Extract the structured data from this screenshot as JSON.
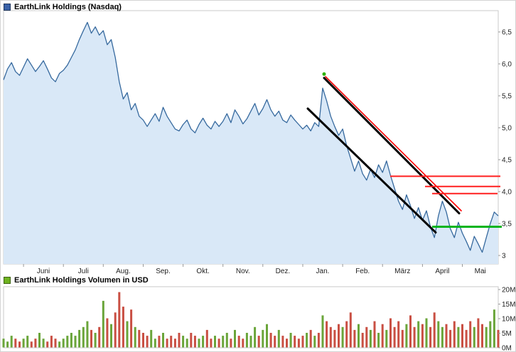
{
  "colors": {
    "price_legend_swatch": "#3a62a8",
    "volume_legend_swatch": "#6fb320",
    "price_line": "#36699e",
    "price_fill": "#d9e8f7",
    "frame": "#c8c8c8",
    "axis_text": "#222222",
    "tick": "#999999"
  },
  "price_chart": {
    "title": "EarthLink Holdings (Nasdaq)"
  },
  "volume_chart": {
    "title": "EarthLink Holdings Volumen in USD"
  },
  "chart_data": [
    {
      "type": "area",
      "title": "EarthLink Holdings (Nasdaq)",
      "ylabel": "",
      "xlabel": "",
      "ylim": [
        2.87,
        6.83
      ],
      "x_tick_labels": [
        "Juni",
        "Juli",
        "Aug.",
        "Sep.",
        "Okt.",
        "Nov.",
        "Dez.",
        "Jan.",
        "Feb.",
        "März",
        "April",
        "Mai"
      ],
      "x_tick_indices": [
        5,
        15,
        25,
        35,
        45,
        55,
        65,
        75,
        85,
        95,
        105,
        115
      ],
      "y_ticks": [
        {
          "label": "6,5",
          "value": 6.5
        },
        {
          "label": "6,0",
          "value": 6.0
        },
        {
          "label": "5,5",
          "value": 5.5
        },
        {
          "label": "5,0",
          "value": 5.0
        },
        {
          "label": "4,5",
          "value": 4.5
        },
        {
          "label": "4,0",
          "value": 4.0
        },
        {
          "label": "3,5",
          "value": 3.5
        },
        {
          "label": "3",
          "value": 3.0
        }
      ],
      "values": [
        5.75,
        5.92,
        6.02,
        5.88,
        5.82,
        5.95,
        6.08,
        5.98,
        5.88,
        5.96,
        6.05,
        5.92,
        5.78,
        5.72,
        5.85,
        5.9,
        5.98,
        6.1,
        6.22,
        6.38,
        6.52,
        6.65,
        6.48,
        6.58,
        6.45,
        6.52,
        6.3,
        6.38,
        6.1,
        5.72,
        5.45,
        5.55,
        5.28,
        5.38,
        5.18,
        5.12,
        5.02,
        5.12,
        5.22,
        5.1,
        5.32,
        5.18,
        5.08,
        4.98,
        4.95,
        5.05,
        5.12,
        4.98,
        4.92,
        5.05,
        5.15,
        5.04,
        4.98,
        5.1,
        5.02,
        5.1,
        5.22,
        5.08,
        5.28,
        5.18,
        5.06,
        5.14,
        5.26,
        5.38,
        5.2,
        5.3,
        5.44,
        5.28,
        5.18,
        5.26,
        5.12,
        5.08,
        5.2,
        5.12,
        5.05,
        4.98,
        5.04,
        4.95,
        5.08,
        5.02,
        5.62,
        5.42,
        5.18,
        5.02,
        4.88,
        4.98,
        4.72,
        4.52,
        4.32,
        4.48,
        4.28,
        4.18,
        4.35,
        4.22,
        4.42,
        4.3,
        4.48,
        4.25,
        4.05,
        3.85,
        3.72,
        3.95,
        3.78,
        3.58,
        3.75,
        3.55,
        3.7,
        3.45,
        3.28,
        3.62,
        3.85,
        3.68,
        3.42,
        3.28,
        3.52,
        3.35,
        3.22,
        3.08,
        3.3,
        3.18,
        3.05,
        3.28,
        3.5,
        3.68,
        3.62
      ],
      "overlays": {
        "trend_lines": [
          {
            "name": "lower-channel-line",
            "color": "#000000",
            "width": 3,
            "x1": 432,
            "price1": 5.3,
            "x2": 612,
            "price2": 3.36
          },
          {
            "name": "upper-channel-line",
            "color": "#000000",
            "width": 3,
            "x1": 455,
            "price1": 5.78,
            "x2": 645,
            "price2": 3.66
          },
          {
            "name": "upper-channel-red-line",
            "color": "#ff0000",
            "width": 1.6,
            "x1": 457,
            "price1": 5.8,
            "x2": 648,
            "price2": 3.7
          }
        ],
        "h_lines": [
          {
            "name": "resistance-line-1",
            "color": "#ff1f1f",
            "width": 2,
            "price": 4.24,
            "x1": 548,
            "x2": 703
          },
          {
            "name": "resistance-line-2",
            "color": "#ff1f1f",
            "width": 2,
            "price": 4.08,
            "x1": 597,
            "x2": 703
          },
          {
            "name": "resistance-line-3",
            "color": "#ff1f1f",
            "width": 2,
            "price": 3.97,
            "x1": 607,
            "x2": 699
          },
          {
            "name": "support-line",
            "color": "#00b41e",
            "width": 3,
            "price": 3.45,
            "x1": 607,
            "x2": 705
          }
        ],
        "markers": [
          {
            "name": "peak-marker",
            "color": "#2db200",
            "x": 455,
            "price": 5.84,
            "r": 2.5
          }
        ]
      }
    },
    {
      "type": "bar",
      "title": "EarthLink Holdings Volumen in USD",
      "unit": "M",
      "up_color": "#6aa53a",
      "down_color": "#c94f43",
      "y_ticks": [
        {
          "label": "20M",
          "value": 20
        },
        {
          "label": "15M",
          "value": 15
        },
        {
          "label": "10M",
          "value": 10
        },
        {
          "label": "5M",
          "value": 5
        },
        {
          "label": "0M",
          "value": 0
        }
      ],
      "values": [
        3,
        2,
        4,
        3,
        2,
        3,
        4,
        2,
        3,
        5,
        3,
        2,
        4,
        3,
        2,
        3,
        4,
        5,
        4,
        6,
        7,
        9,
        6,
        5,
        7,
        16,
        10,
        8,
        12,
        19,
        14,
        9,
        13,
        7,
        6,
        5,
        4,
        6,
        3,
        4,
        5,
        3,
        4,
        3,
        5,
        4,
        3,
        5,
        4,
        3,
        4,
        6,
        3,
        4,
        3,
        4,
        5,
        3,
        6,
        4,
        3,
        5,
        4,
        7,
        4,
        6,
        8,
        5,
        4,
        6,
        4,
        3,
        5,
        4,
        3,
        4,
        5,
        6,
        4,
        5,
        11,
        9,
        7,
        6,
        8,
        7,
        9,
        12,
        6,
        8,
        5,
        7,
        6,
        9,
        5,
        8,
        6,
        10,
        7,
        9,
        6,
        8,
        11,
        7,
        9,
        8,
        10,
        7,
        12,
        9,
        7,
        8,
        6,
        9,
        7,
        8,
        6,
        9,
        7,
        10,
        8,
        7,
        9,
        13,
        6
      ]
    }
  ]
}
